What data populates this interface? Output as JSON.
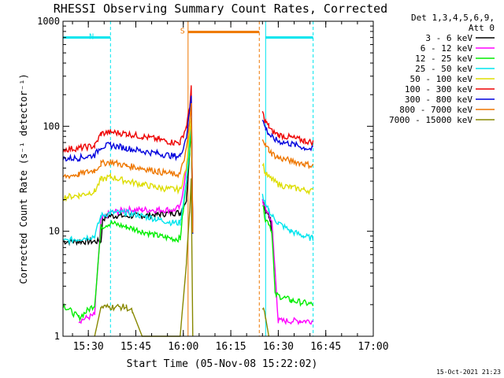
{
  "chart_data": {
    "type": "line",
    "title": "RHESSI Observing Summary Count Rates, Corrected",
    "xlabel": "Start Time (05-Nov-08 15:22:02)",
    "ylabel": "Corrected Count Rate (s⁻¹ detector⁻¹)",
    "yscale": "log",
    "ylim": [
      1,
      1000
    ],
    "xlim_minutes": [
      0,
      98
    ],
    "x_ticks": [
      {
        "label": "15:30",
        "minute": 8
      },
      {
        "label": "15:45",
        "minute": 23
      },
      {
        "label": "16:00",
        "minute": 38
      },
      {
        "label": "16:15",
        "minute": 53
      },
      {
        "label": "16:30",
        "minute": 68
      },
      {
        "label": "16:45",
        "minute": 83
      },
      {
        "label": "17:00",
        "minute": 98
      }
    ],
    "y_ticks": [
      {
        "label": "1",
        "value": 1
      },
      {
        "label": "10",
        "value": 10
      },
      {
        "label": "100",
        "value": 100
      },
      {
        "label": "1000",
        "value": 1000
      }
    ],
    "legend": {
      "header": [
        "Det 1,3,4,5,6,9,",
        "Att 0"
      ],
      "position": "right"
    },
    "bands": [
      {
        "label": "N",
        "name": "night",
        "color": "#00e5ee",
        "start_minute": 0,
        "end_minute": 15,
        "level": 700
      },
      {
        "label": "S",
        "name": "saa",
        "color": "#ee7700",
        "start_minute": 39.5,
        "end_minute": 62,
        "level": 790
      },
      {
        "label": "",
        "name": "night",
        "color": "#00e5ee",
        "start_minute": 64,
        "end_minute": 79,
        "level": 700
      }
    ],
    "series": [
      {
        "name": "3 - 6 keV",
        "color": "#000000",
        "points": [
          [
            0,
            8
          ],
          [
            12,
            8
          ],
          [
            12.5,
            13
          ],
          [
            14,
            14
          ],
          [
            17,
            14
          ],
          [
            20,
            14
          ],
          [
            25,
            14
          ],
          [
            30,
            14.5
          ],
          [
            35,
            15
          ],
          [
            37,
            15
          ],
          [
            39,
            20
          ],
          [
            40,
            60
          ],
          [
            40.5,
            100
          ],
          [
            41,
            10
          ]
        ],
        "segments2": [
          [
            63,
            20
          ],
          [
            64,
            15
          ],
          [
            65,
            14
          ],
          [
            65.5,
            13
          ],
          [
            66,
            10
          ]
        ]
      },
      {
        "name": "6 - 12 keV",
        "color": "#ff00ff",
        "points": [
          [
            5,
            1.4
          ],
          [
            10,
            1.6
          ],
          [
            12,
            13
          ],
          [
            15,
            15
          ],
          [
            20,
            16
          ],
          [
            25,
            16
          ],
          [
            30,
            16
          ],
          [
            35,
            16
          ],
          [
            37,
            17
          ],
          [
            39,
            40
          ],
          [
            40,
            80
          ],
          [
            40.5,
            100
          ],
          [
            41,
            10
          ]
        ],
        "segments2": [
          [
            63,
            20
          ],
          [
            64,
            16
          ],
          [
            65,
            15
          ],
          [
            66,
            12
          ],
          [
            68,
            1.4
          ],
          [
            75,
            1.4
          ],
          [
            79,
            1.4
          ]
        ]
      },
      {
        "name": "12 - 25 keV",
        "color": "#00ee00",
        "points": [
          [
            0,
            2
          ],
          [
            5,
            1.5
          ],
          [
            10,
            2
          ],
          [
            12,
            11
          ],
          [
            15,
            12
          ],
          [
            20,
            11
          ],
          [
            25,
            10
          ],
          [
            30,
            9
          ],
          [
            35,
            8.5
          ],
          [
            37,
            8.5
          ],
          [
            39,
            30
          ],
          [
            40,
            60
          ],
          [
            40.5,
            90
          ],
          [
            41,
            10
          ]
        ],
        "segments2": [
          [
            63,
            18
          ],
          [
            64,
            13
          ],
          [
            65,
            12
          ],
          [
            66,
            10
          ],
          [
            67,
            2.5
          ],
          [
            72,
            2.2
          ],
          [
            79,
            2
          ]
        ]
      },
      {
        "name": "25 - 50 keV",
        "color": "#00e5ee",
        "points": [
          [
            0,
            8
          ],
          [
            5,
            8.5
          ],
          [
            10,
            9
          ],
          [
            12,
            14
          ],
          [
            15,
            15
          ],
          [
            20,
            15
          ],
          [
            25,
            14
          ],
          [
            30,
            13
          ],
          [
            35,
            12
          ],
          [
            37,
            12
          ],
          [
            39,
            30
          ],
          [
            40,
            80
          ],
          [
            40.5,
            110
          ],
          [
            41,
            10
          ]
        ],
        "segments2": [
          [
            63,
            22
          ],
          [
            64,
            17
          ],
          [
            65,
            16
          ],
          [
            66,
            14
          ],
          [
            68,
            12
          ],
          [
            72,
            10
          ],
          [
            76,
            9
          ],
          [
            79,
            8.5
          ]
        ]
      },
      {
        "name": "50 - 100 keV",
        "color": "#dddd00",
        "points": [
          [
            0,
            21
          ],
          [
            5,
            22
          ],
          [
            10,
            24
          ],
          [
            12,
            31
          ],
          [
            15,
            33
          ],
          [
            20,
            30
          ],
          [
            25,
            28
          ],
          [
            30,
            26
          ],
          [
            35,
            25
          ],
          [
            37,
            25
          ],
          [
            39,
            40
          ],
          [
            40,
            90
          ],
          [
            40.5,
            120
          ],
          [
            41,
            10
          ]
        ],
        "segments2": [
          [
            63,
            45
          ],
          [
            64,
            35
          ],
          [
            65,
            33
          ],
          [
            66,
            31
          ],
          [
            68,
            28
          ],
          [
            72,
            26
          ],
          [
            76,
            25
          ],
          [
            79,
            24
          ]
        ]
      },
      {
        "name": "100 - 300 keV",
        "color": "#ee0000",
        "points": [
          [
            0,
            60
          ],
          [
            5,
            62
          ],
          [
            10,
            65
          ],
          [
            12,
            85
          ],
          [
            15,
            88
          ],
          [
            20,
            85
          ],
          [
            25,
            80
          ],
          [
            30,
            75
          ],
          [
            35,
            70
          ],
          [
            37,
            70
          ],
          [
            39,
            100
          ],
          [
            40,
            150
          ],
          [
            40.5,
            230
          ],
          [
            41,
            10
          ]
        ],
        "segments2": [
          [
            63,
            135
          ],
          [
            64,
            110
          ],
          [
            65,
            100
          ],
          [
            66,
            90
          ],
          [
            68,
            83
          ],
          [
            72,
            78
          ],
          [
            76,
            73
          ],
          [
            79,
            70
          ]
        ]
      },
      {
        "name": "300 - 800 keV",
        "color": "#0000dd",
        "points": [
          [
            0,
            49
          ],
          [
            5,
            50
          ],
          [
            10,
            53
          ],
          [
            12,
            64
          ],
          [
            15,
            66
          ],
          [
            20,
            62
          ],
          [
            25,
            58
          ],
          [
            30,
            55
          ],
          [
            35,
            52
          ],
          [
            37,
            52
          ],
          [
            39,
            80
          ],
          [
            40,
            140
          ],
          [
            40.5,
            200
          ],
          [
            41,
            10
          ]
        ],
        "segments2": [
          [
            63,
            115
          ],
          [
            64,
            95
          ],
          [
            65,
            85
          ],
          [
            66,
            78
          ],
          [
            68,
            72
          ],
          [
            72,
            68
          ],
          [
            76,
            63
          ],
          [
            79,
            60
          ]
        ]
      },
      {
        "name": "800 - 7000 keV",
        "color": "#ee7700",
        "points": [
          [
            0,
            33
          ],
          [
            5,
            35
          ],
          [
            10,
            38
          ],
          [
            12,
            44
          ],
          [
            15,
            46
          ],
          [
            20,
            42
          ],
          [
            25,
            40
          ],
          [
            30,
            37
          ],
          [
            35,
            35
          ],
          [
            37,
            35
          ],
          [
            39,
            60
          ],
          [
            40,
            110
          ],
          [
            40.5,
            160
          ],
          [
            41,
            10
          ]
        ],
        "segments2": [
          [
            63,
            80
          ],
          [
            64,
            65
          ],
          [
            65,
            60
          ],
          [
            66,
            55
          ],
          [
            68,
            50
          ],
          [
            72,
            47
          ],
          [
            76,
            44
          ],
          [
            79,
            42
          ]
        ]
      },
      {
        "name": "7000 - 15000 keV",
        "color": "#888800",
        "points": [
          [
            10,
            1
          ],
          [
            12,
            1.9
          ],
          [
            15,
            1.9
          ],
          [
            20,
            1.9
          ],
          [
            22,
            1.7
          ],
          [
            25,
            1
          ],
          [
            37,
            1
          ],
          [
            39,
            5
          ],
          [
            40,
            15
          ],
          [
            40.5,
            30
          ],
          [
            41,
            1
          ]
        ],
        "segments2": [
          [
            63,
            1.9
          ],
          [
            64,
            1.5
          ],
          [
            65,
            1
          ]
        ]
      }
    ]
  },
  "footer": {
    "datestamp": "15-Oct-2021 21:23"
  }
}
